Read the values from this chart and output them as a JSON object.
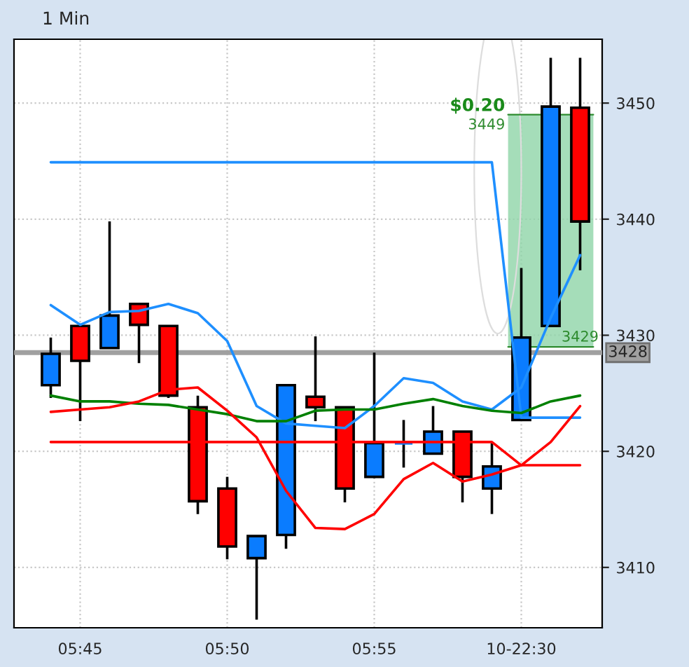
{
  "chart_data": {
    "type": "candlestick",
    "title": "1 Min",
    "categories": [
      null,
      "05:45",
      null,
      null,
      null,
      null,
      "05:50",
      null,
      null,
      null,
      null,
      "05:55",
      null,
      null,
      null,
      null,
      "10-22:30",
      null,
      null
    ],
    "ohlc": [
      [
        3425.7,
        3429.8,
        3424.6,
        3428.4
      ],
      [
        3430.8,
        3430.8,
        3422.6,
        3427.8
      ],
      [
        3428.9,
        3439.8,
        3428.9,
        3431.7
      ],
      [
        3432.7,
        3432.7,
        3427.6,
        3430.9
      ],
      [
        3430.8,
        3430.8,
        3424.6,
        3424.8
      ],
      [
        3423.8,
        3424.8,
        3414.6,
        3415.7
      ],
      [
        3416.8,
        3417.8,
        3410.7,
        3411.8
      ],
      [
        3410.8,
        3412.7,
        3405.5,
        3412.7
      ],
      [
        3412.8,
        3425.7,
        3411.6,
        3425.7
      ],
      [
        3424.7,
        3429.9,
        3422.6,
        3423.8
      ],
      [
        3423.8,
        3423.8,
        3415.6,
        3416.8
      ],
      [
        3417.8,
        3428.5,
        3417.7,
        3420.7
      ],
      [
        3420.7,
        3422.7,
        3418.6,
        3420.7
      ],
      [
        3419.8,
        3423.9,
        3419.8,
        3421.7
      ],
      [
        3421.7,
        3421.7,
        3415.6,
        3417.8
      ],
      [
        3416.8,
        3420.7,
        3414.6,
        3418.7
      ],
      [
        3422.7,
        3435.8,
        3422.7,
        3429.8
      ],
      [
        3430.8,
        3453.9,
        3430.8,
        3449.7
      ],
      [
        3449.6,
        3453.9,
        3435.6,
        3439.8
      ]
    ],
    "colors": [
      "#0a7cff",
      "#ff0000",
      "#0a7cff",
      "#ff0000",
      "#ff0000",
      "#ff0000",
      "#ff0000",
      "#0a7cff",
      "#0a7cff",
      "#ff0000",
      "#ff0000",
      "#0a7cff",
      "#0a7cff",
      "#0a7cff",
      "#ff0000",
      "#0a7cff",
      "#0a7cff",
      "#0a7cff",
      "#ff0000"
    ],
    "series": [
      {
        "type": "line",
        "color": "#1e8fff",
        "values": [
          3444.9,
          3444.9,
          3444.9,
          3444.9,
          3444.9,
          3444.9,
          3444.9,
          3444.9,
          3444.9,
          3444.9,
          3444.9,
          3444.9,
          3444.9,
          3444.9,
          3444.9,
          3444.9,
          3422.9,
          3422.9,
          3422.9
        ]
      },
      {
        "type": "line",
        "color": "#1e8fff",
        "values": [
          3432.6,
          3430.9,
          3432.0,
          3432.1,
          3432.7,
          3431.9,
          3429.5,
          3423.9,
          3422.4,
          3422.2,
          3422.0,
          3423.9,
          3426.3,
          3425.9,
          3424.3,
          3423.6,
          3425.5,
          3431.5,
          3436.9
        ]
      },
      {
        "type": "line",
        "color": "#008000",
        "values": [
          3424.8,
          3424.3,
          3424.3,
          3424.1,
          3424.0,
          3423.6,
          3423.2,
          3422.6,
          3422.6,
          3423.5,
          3423.6,
          3423.6,
          3424.1,
          3424.5,
          3423.9,
          3423.5,
          3423.3,
          3424.3,
          3424.8
        ]
      },
      {
        "type": "line",
        "color": "#ff0000",
        "values": [
          3423.4,
          3423.6,
          3423.8,
          3424.3,
          3425.3,
          3425.5,
          3423.5,
          3421.2,
          3416.6,
          3413.4,
          3413.3,
          3414.6,
          3417.6,
          3419.0,
          3417.4,
          3418.0,
          3418.8,
          3420.8,
          3423.9
        ]
      },
      {
        "type": "line",
        "color": "#ff0000",
        "values": [
          3420.8,
          3420.8,
          3420.8,
          3420.8,
          3420.8,
          3420.8,
          3420.8,
          3420.8,
          3420.8,
          3420.8,
          3420.8,
          3420.8,
          3420.8,
          3420.8,
          3420.8,
          3420.8,
          3418.8,
          3418.8,
          3418.8
        ]
      }
    ],
    "ylim": [
      3404.8,
      3455.5
    ],
    "yticks": [
      3410,
      3420,
      3430,
      3440,
      3450
    ],
    "ref_lines": [
      {
        "axis": "y",
        "value": 3428.5,
        "label": "3428",
        "color": "#a0a0a0"
      },
      {
        "axis": "y",
        "value": 3449,
        "label": "3449",
        "color": "#2e8b2e"
      },
      {
        "axis": "y",
        "value": 3429,
        "label": "3429",
        "color": "#2e8b2e"
      }
    ],
    "bands": [
      {
        "axis": "y",
        "from": 3429,
        "to": 3449,
        "label": "$0.20",
        "color": "#8fd4a8"
      }
    ],
    "grid": true,
    "legend": false
  }
}
